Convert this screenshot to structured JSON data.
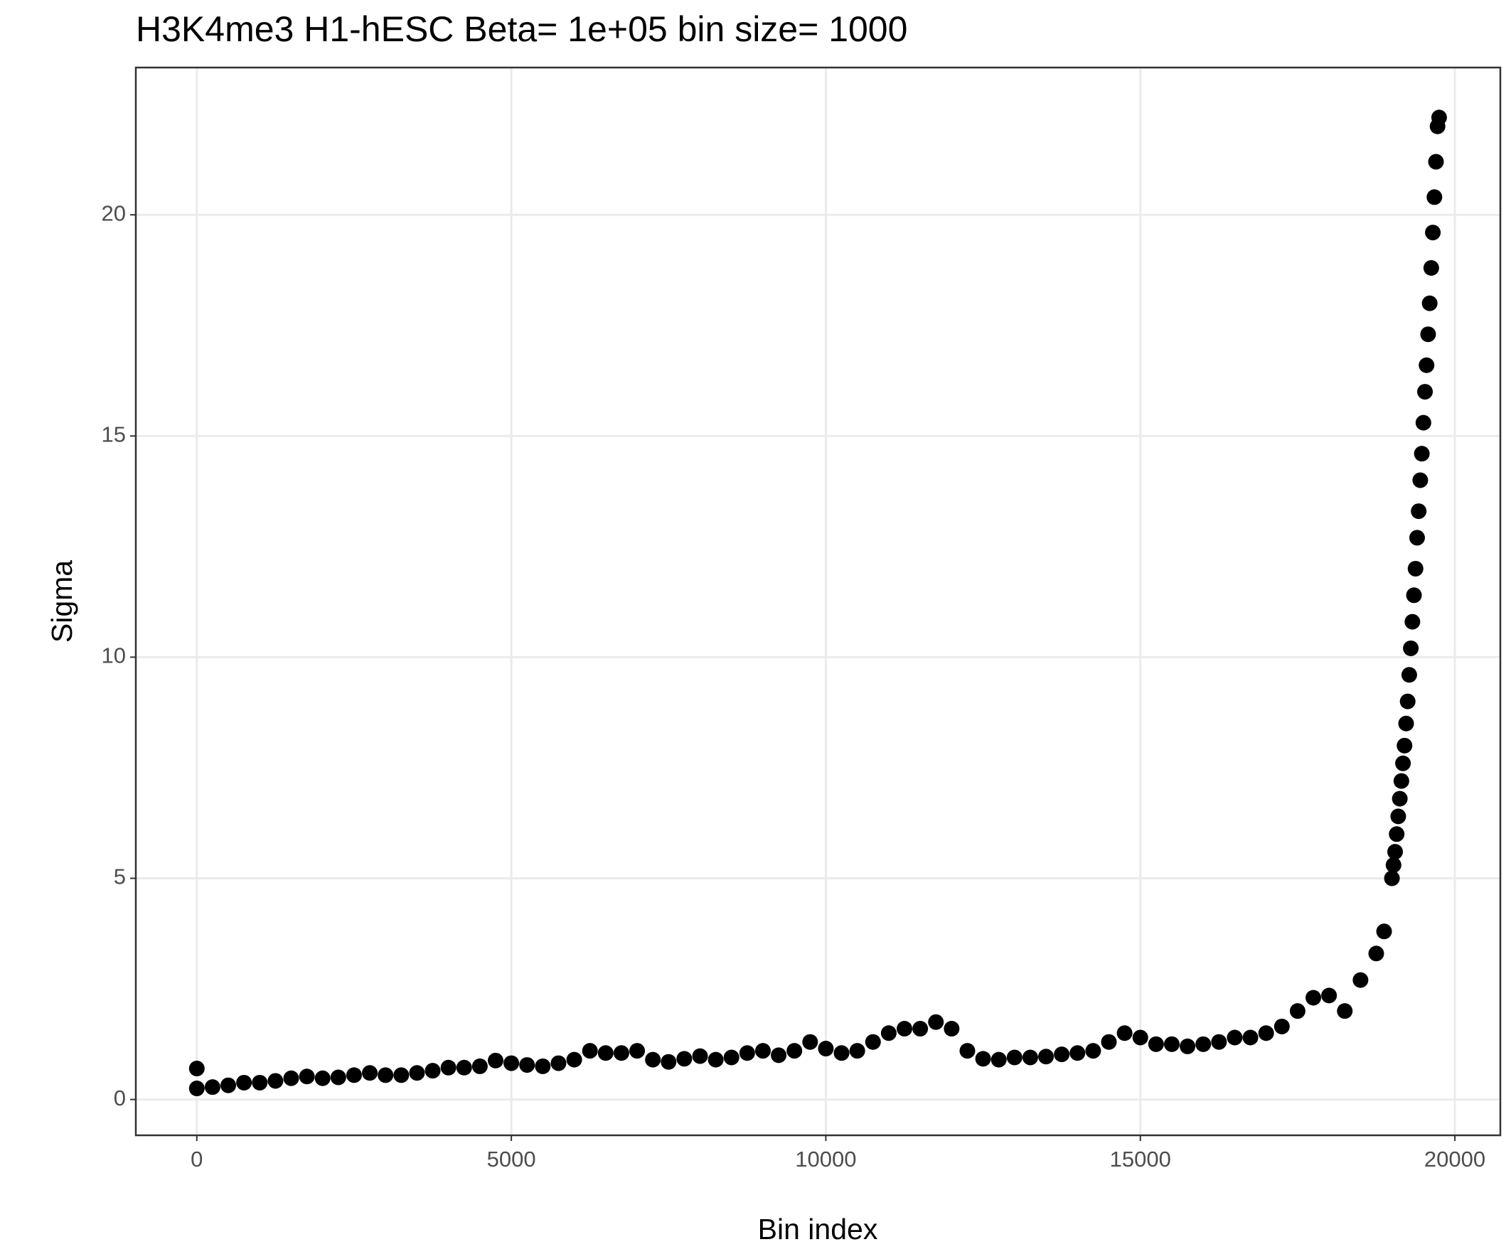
{
  "chart_data": {
    "type": "scatter",
    "title": "H3K4me3 H1-hESC  Beta=  1e+05  bin size=  1000",
    "x_label": "Bin index",
    "y_label": "Sigma",
    "xlim": [
      -970,
      20723
    ],
    "ylim": [
      -0.81,
      23.33
    ],
    "xticks": [
      0,
      5000,
      10000,
      15000,
      20000
    ],
    "yticks": [
      0,
      5,
      10,
      15,
      20
    ],
    "grid": true,
    "series": [
      {
        "color": "#000000",
        "x": [
          0,
          250,
          500,
          750,
          1000,
          1250,
          1500,
          1750,
          2000,
          2250,
          2500,
          2750,
          3000,
          3250,
          3500,
          3750,
          4000,
          4250,
          4500,
          4750,
          5000,
          5250,
          5500,
          5750,
          6000,
          6250,
          6500,
          6750,
          7000,
          7250,
          7500,
          7750,
          8000,
          8250,
          8500,
          8750,
          9000,
          9250,
          9500,
          9750,
          10000,
          10250,
          10500,
          10750,
          11000,
          11250,
          11500,
          11750,
          12000,
          12250,
          12500,
          12750,
          13000,
          13250,
          13500,
          13750,
          14000,
          14250,
          14500,
          14750,
          15000,
          15250,
          15500,
          15750,
          16000,
          16250,
          16500,
          16750,
          17000,
          17250,
          17500,
          17750,
          18000,
          18250,
          18500,
          18750,
          18875,
          19000,
          19025,
          19050,
          19075,
          19100,
          19125,
          19150,
          19175,
          19200,
          19225,
          19250,
          19275,
          19300,
          19325,
          19350,
          19375,
          19400,
          19425,
          19450,
          19475,
          19500,
          19525,
          19550,
          19575,
          19600,
          19625,
          19650,
          19675,
          19700,
          19725,
          19750
        ],
        "values": [
          0.25,
          0.28,
          0.32,
          0.38,
          0.38,
          0.42,
          0.48,
          0.52,
          0.48,
          0.5,
          0.55,
          0.6,
          0.55,
          0.55,
          0.6,
          0.65,
          0.72,
          0.72,
          0.75,
          0.88,
          0.82,
          0.78,
          0.75,
          0.82,
          0.9,
          1.1,
          1.05,
          1.05,
          1.1,
          0.9,
          0.85,
          0.92,
          0.98,
          0.9,
          0.95,
          1.05,
          1.1,
          1.0,
          1.1,
          1.3,
          1.15,
          1.05,
          1.1,
          1.3,
          1.5,
          1.6,
          1.6,
          1.75,
          1.6,
          1.1,
          0.92,
          0.9,
          0.95,
          0.95,
          0.97,
          1.02,
          1.05,
          1.1,
          1.3,
          1.5,
          1.4,
          1.25,
          1.25,
          1.2,
          1.25,
          1.3,
          1.4,
          1.4,
          1.5,
          1.65,
          2.0,
          2.3,
          2.35,
          2.0,
          2.7,
          3.3,
          3.8,
          5.0,
          5.3,
          5.6,
          6.0,
          6.4,
          6.8,
          7.2,
          7.6,
          8.0,
          8.5,
          9.0,
          9.6,
          10.2,
          10.8,
          11.4,
          12.0,
          12.7,
          13.3,
          14.0,
          14.6,
          15.3,
          16.0,
          16.6,
          17.3,
          18.0,
          18.8,
          19.6,
          20.4,
          21.2,
          22.0,
          22.2
        ]
      },
      {
        "color": "#000000",
        "x": [
          0
        ],
        "values": [
          0.7
        ]
      }
    ]
  }
}
